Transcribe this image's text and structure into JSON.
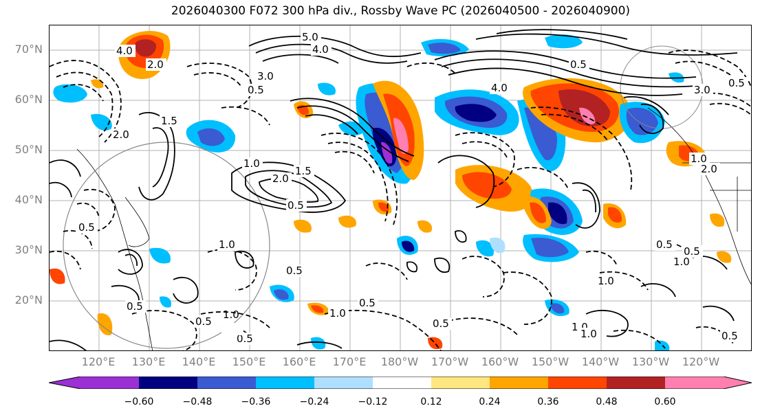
{
  "title": "2026040300 F072 300 hPa div., Rossby Wave PC (2026040500 - 2026040900)",
  "map": {
    "lat_labels": [
      "70°N",
      "60°N",
      "50°N",
      "40°N",
      "30°N",
      "20°N"
    ],
    "lon_labels": [
      "120°E",
      "130°E",
      "140°E",
      "150°E",
      "160°E",
      "170°E",
      "180°W",
      "170°W",
      "160°W",
      "150°W",
      "140°W",
      "130°W",
      "120°W"
    ],
    "contour_labels": [
      "4.0",
      "5.0",
      "4.0",
      "2.0",
      "3.0",
      "0.5",
      "4.0",
      "1.5",
      "2.0",
      "1.0",
      "2.0",
      "1.5",
      "0.5",
      "1.0",
      "2.0",
      "0.5",
      "1.0",
      "0.5",
      "1.0",
      "0.5",
      "0.5",
      "1.0",
      "0.5",
      "0.5",
      "1.0",
      "1.0",
      "0.5",
      "0.5",
      "3.0",
      "0.5",
      "1.0",
      "0.5",
      "1.0",
      "0.5",
      "0.5"
    ]
  },
  "colorbar": {
    "colors": [
      "#9b30d4",
      "#000080",
      "#3a5bd1",
      "#00bfff",
      "#afdfff",
      "#ffffff",
      "#ffe680",
      "#ffa500",
      "#ff4500",
      "#b22222",
      "#ff80b0",
      "#ff80b0"
    ],
    "tick_labels": [
      "−0.60",
      "−0.48",
      "−0.36",
      "−0.24",
      "−0.12",
      "0.12",
      "0.24",
      "0.36",
      "0.48",
      "0.60"
    ]
  }
}
